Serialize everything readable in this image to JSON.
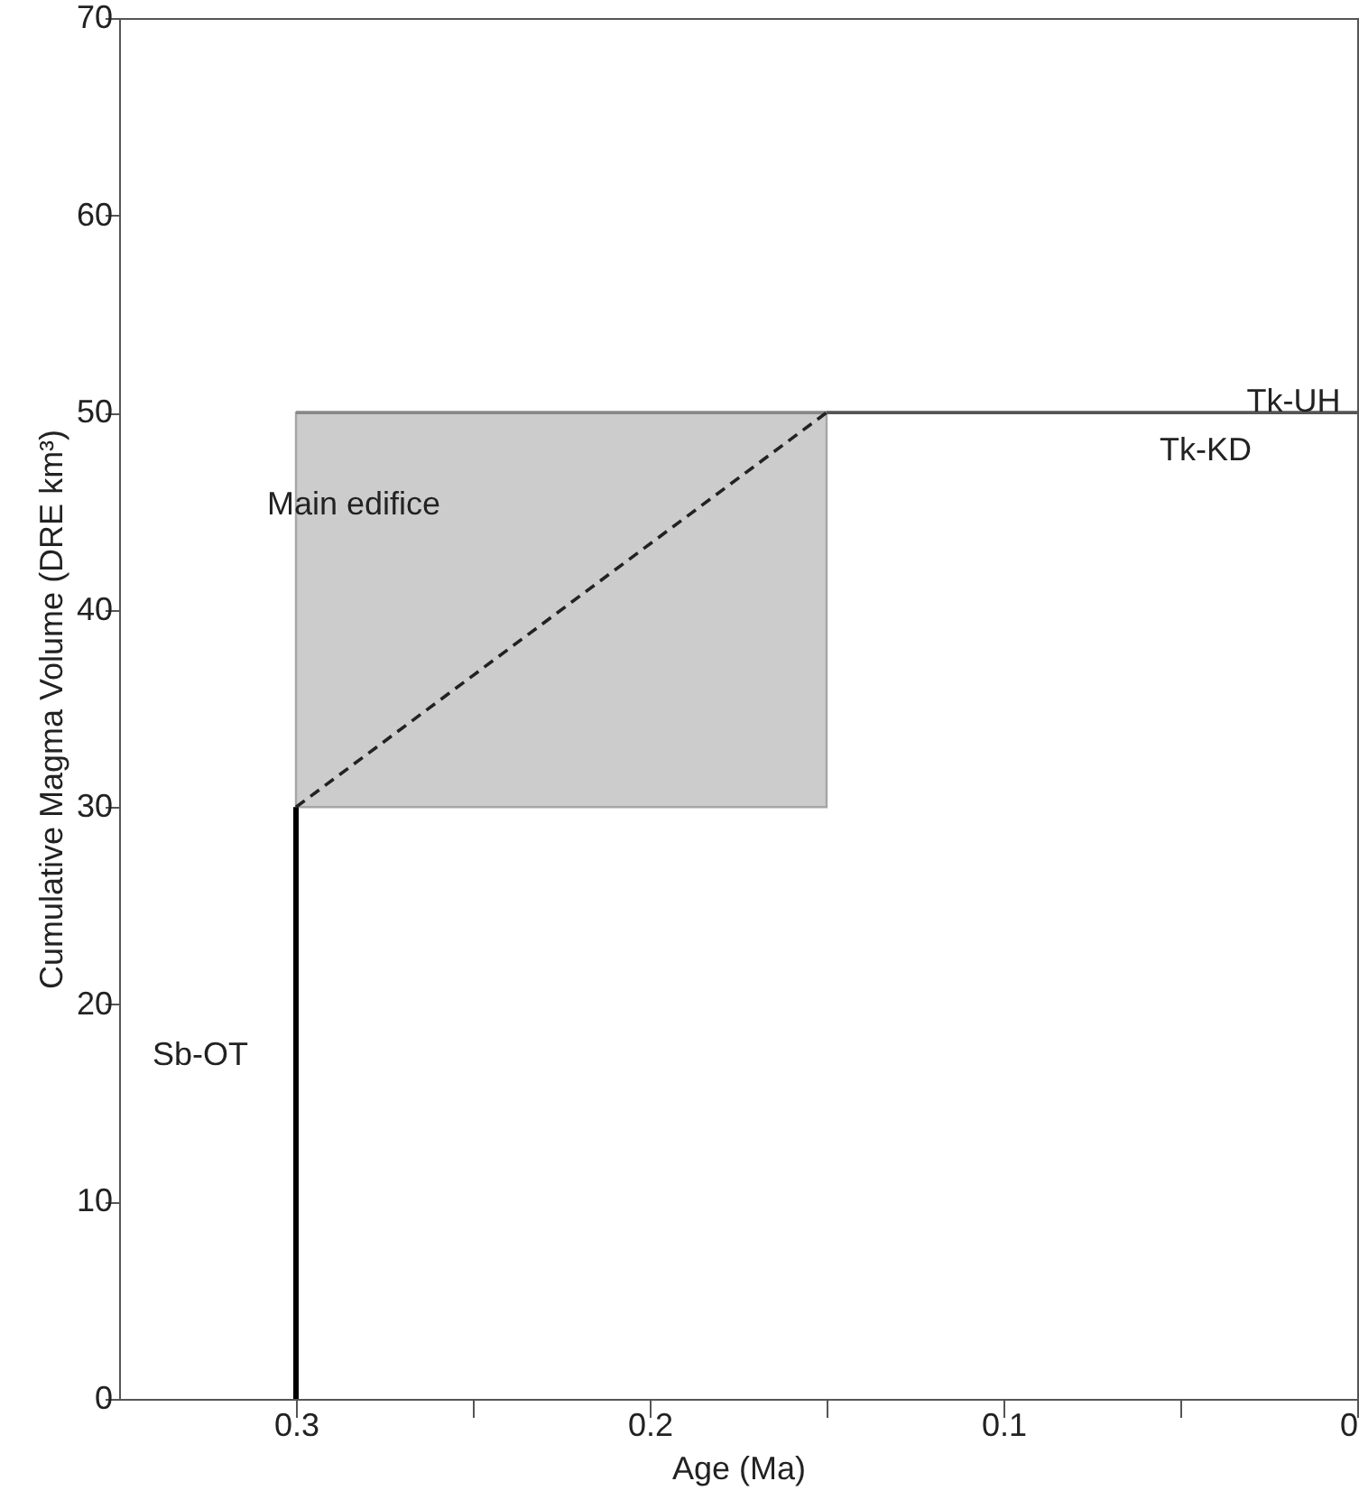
{
  "chart_data": {
    "type": "line",
    "xlabel": "Age (Ma)",
    "ylabel": "Cumulative Magma Volume (DRE km³)",
    "xlim": [
      0.35,
      0
    ],
    "xticks": [
      0.3,
      {
        "value": 0.25,
        "label": null
      },
      0.2,
      {
        "value": 0.15,
        "label": null
      },
      0.1,
      {
        "value": 0.05,
        "label": null
      },
      0
    ],
    "ylim": [
      0,
      70
    ],
    "yticks": [
      0,
      10,
      20,
      30,
      40,
      50,
      60,
      70
    ],
    "grid": false,
    "series": [
      {
        "color": "#888888",
        "x": [
          0.3,
          0.15
        ],
        "values": [
          50,
          50
        ],
        "lower": [
          30,
          30
        ],
        "upper": [
          50,
          50
        ]
      },
      {
        "color": "#000000",
        "x": [
          0.3,
          0.3
        ],
        "values": [
          0,
          30
        ]
      },
      {
        "color": "#222222",
        "x": [
          0.3,
          0.15
        ],
        "values": [
          30,
          50
        ],
        "line_style": "dashed"
      },
      {
        "color": "#555555",
        "x": [
          0.15,
          0
        ],
        "values": [
          50,
          50
        ]
      }
    ],
    "annotations": [
      "Main edifice",
      "Sb-OT",
      {
        "text": "Tk-UH",
        "x": 0.018,
        "y": 50.5
      },
      "Tk-KD"
    ]
  }
}
